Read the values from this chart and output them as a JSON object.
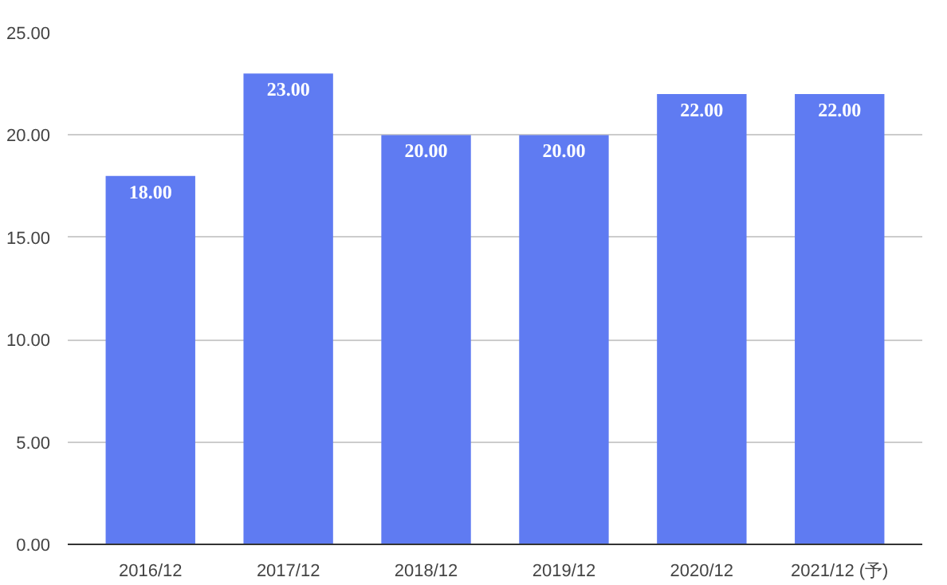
{
  "chart_data": {
    "type": "bar",
    "categories": [
      "2016/12",
      "2017/12",
      "2018/12",
      "2019/12",
      "2020/12",
      "2021/12 (予)"
    ],
    "values": [
      18,
      23,
      20,
      20,
      22,
      22
    ],
    "value_labels": [
      "18.00",
      "23.00",
      "20.00",
      "20.00",
      "22.00",
      "22.00"
    ],
    "color": "#5f7bf2",
    "ylim": [
      0,
      25
    ],
    "yticks": [
      {
        "value": 0,
        "label": "0.00"
      },
      {
        "value": 5,
        "label": "5.00"
      },
      {
        "value": 10,
        "label": "10.00"
      },
      {
        "value": 15,
        "label": "15.00"
      },
      {
        "value": 20,
        "label": "20.00"
      },
      {
        "value": 25,
        "label": "25.00"
      }
    ],
    "grid": "y"
  }
}
